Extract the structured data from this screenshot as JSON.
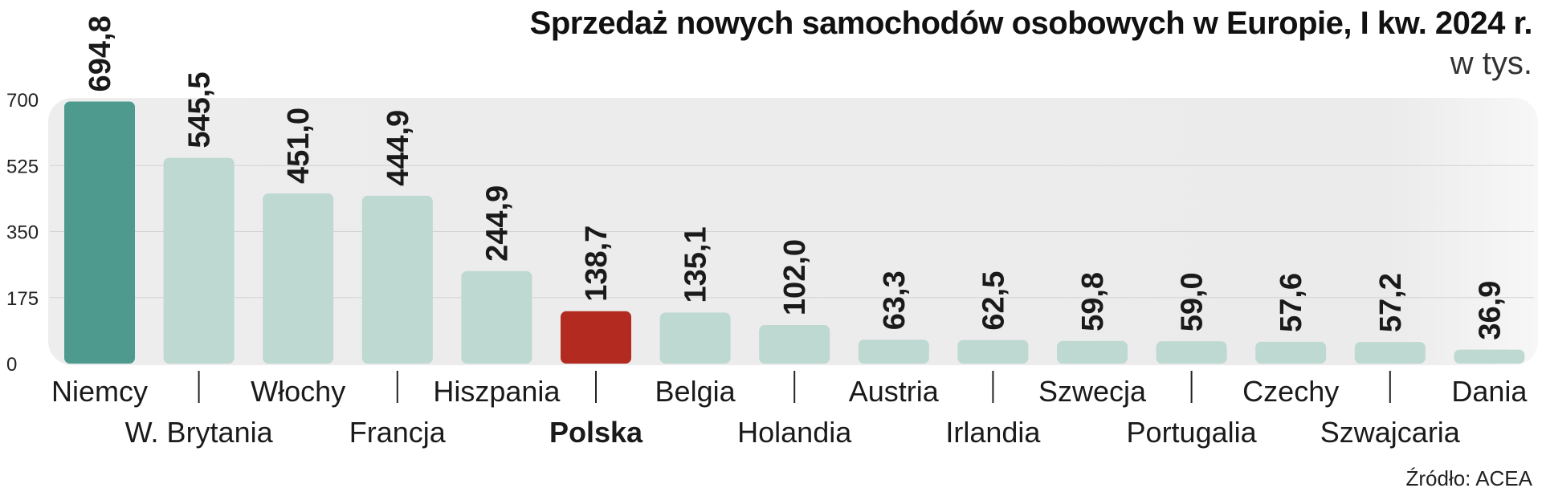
{
  "chart_data": {
    "type": "bar",
    "title": "Sprzedaż nowych samochodów osobowych w Europie, I kw. 2024 r.",
    "subtitle": "w tys.",
    "source": "Źródło: ACEA",
    "categories": [
      "Niemcy",
      "W. Brytania",
      "Włochy",
      "Francja",
      "Hiszpania",
      "Polska",
      "Belgia",
      "Holandia",
      "Austria",
      "Irlandia",
      "Szwecja",
      "Portugalia",
      "Czechy",
      "Szwajcaria",
      "Dania"
    ],
    "values": [
      694.8,
      545.5,
      451.0,
      444.9,
      244.9,
      138.7,
      135.1,
      102.0,
      63.3,
      62.5,
      59.8,
      59.0,
      57.6,
      57.2,
      36.9
    ],
    "value_labels": [
      "694,8",
      "545,5",
      "451,0",
      "444,9",
      "244,9",
      "138,7",
      "135,1",
      "102,0",
      "63,3",
      "62,5",
      "59,8",
      "59,0",
      "57,6",
      "57,2",
      "36,9"
    ],
    "yticks": [
      0,
      175,
      350,
      525,
      700
    ],
    "ylim": [
      0,
      700
    ],
    "grid": true,
    "colors": {
      "default": "#bed8d2",
      "highlight_first": "#4f9a8e",
      "highlight_poland": "#b22a20",
      "plot_bg": "#ececec",
      "grid": "#d3d3d3"
    },
    "highlight": {
      "Niemcy": "highlight_first",
      "Polska": "highlight_poland"
    },
    "bold_categories": [
      "Polska"
    ]
  }
}
